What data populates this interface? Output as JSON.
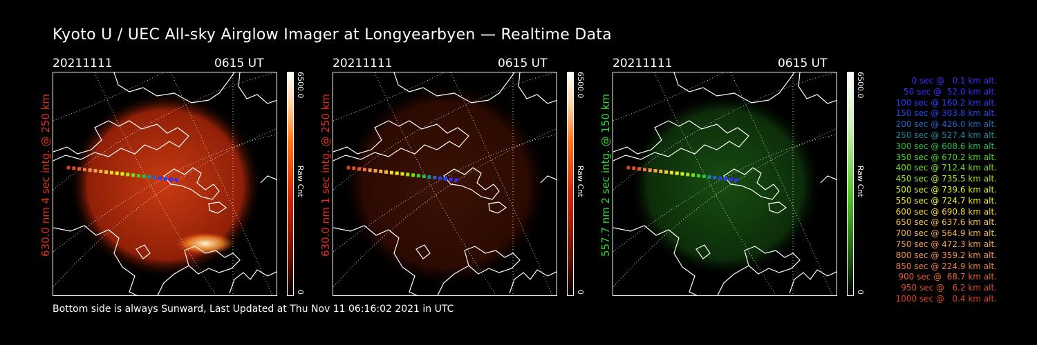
{
  "title": "Kyoto U / UEC All-sky Airglow Imager at Longyearbyen — Realtime Data",
  "footer": "Bottom side is always Sunward, Last Updated at Thu Nov 11 06:16:02 2021 in UTC",
  "panels": [
    {
      "date": "20211111",
      "time": "0615 UT",
      "label": "630.0 nm 4 sec intg. @ 250 km",
      "label_color": "#e03018",
      "cbar_max": "6500.0",
      "cbar_unit": "Raw Cnt",
      "cbar_min": "0",
      "glow": "red",
      "brightness": 1.0
    },
    {
      "date": "20211111",
      "time": "0615 UT",
      "label": "630.0 nm 1 sec intg. @ 250 km",
      "label_color": "#e03018",
      "cbar_max": "6500.0",
      "cbar_unit": "Raw Cnt",
      "cbar_min": "0",
      "glow": "red",
      "brightness": 0.3
    },
    {
      "date": "20211111",
      "time": "0615 UT",
      "label": "557.7 nm 2 sec intg. @ 150 km",
      "label_color": "#30d830",
      "cbar_max": "6500.0",
      "cbar_unit": "Raw Cnt",
      "cbar_min": "0",
      "glow": "green",
      "brightness": 0.5
    }
  ],
  "legend": [
    {
      "text": "0 sec @   0.1 km alt.",
      "color": "#3a2cff"
    },
    {
      "text": "50 sec @  52.0 km alt.",
      "color": "#3a2cff"
    },
    {
      "text": "100 sec @ 160.2 km alt.",
      "color": "#2a3cff"
    },
    {
      "text": "150 sec @ 303.8 km alt.",
      "color": "#2244ee"
    },
    {
      "text": "200 sec @ 426.0 km alt.",
      "color": "#2266cc"
    },
    {
      "text": "250 sec @ 527.4 km alt.",
      "color": "#1a8aa0"
    },
    {
      "text": "300 sec @ 608.6 km alt.",
      "color": "#22c040"
    },
    {
      "text": "350 sec @ 670.2 km alt.",
      "color": "#40d820"
    },
    {
      "text": "400 sec @ 712.4 km alt.",
      "color": "#70e020"
    },
    {
      "text": "450 sec @ 735.5 km alt.",
      "color": "#a8e820"
    },
    {
      "text": "500 sec @ 739.6 km alt.",
      "color": "#d8f020"
    },
    {
      "text": "550 sec @ 724.7 km alt.",
      "color": "#f0f020"
    },
    {
      "text": "600 sec @ 690.8 km alt.",
      "color": "#f8d820"
    },
    {
      "text": "650 sec @ 637.6 km alt.",
      "color": "#f8c040"
    },
    {
      "text": "700 sec @ 564.9 km alt.",
      "color": "#f8b048"
    },
    {
      "text": "750 sec @ 472.3 km alt.",
      "color": "#f8a050"
    },
    {
      "text": "800 sec @ 359.2 km alt.",
      "color": "#f89050"
    },
    {
      "text": "850 sec @ 224.9 km alt.",
      "color": "#f07840"
    },
    {
      "text": "900 sec @  68.7 km alt.",
      "color": "#e86030"
    },
    {
      "text": "950 sec @   6.2 km alt.",
      "color": "#e05028"
    },
    {
      "text": "1000 sec @   0.4 km alt.",
      "color": "#e04020"
    }
  ]
}
